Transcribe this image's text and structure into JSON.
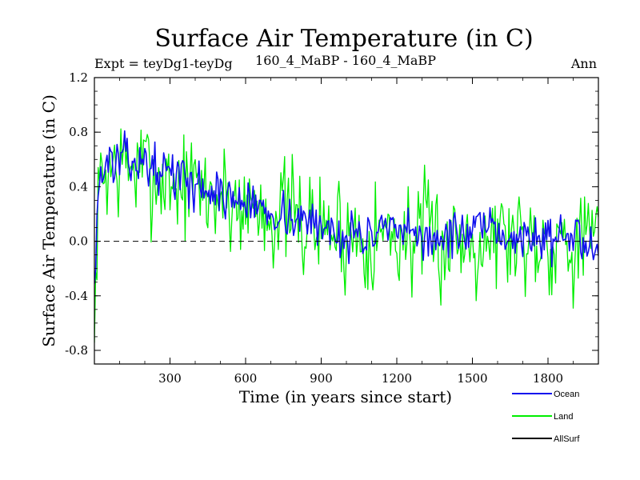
{
  "chart_data": {
    "type": "line",
    "title": "Surface Air Temperature (in C)",
    "subtitle_left": "Expt = teyDg1-teyDg",
    "subtitle_center": "160_4_MaBP - 160_4_MaBP",
    "subtitle_right": "Ann",
    "xlabel": "Time (in years since start)",
    "ylabel": "Surface Air Temperature (in C)",
    "xlim": [
      0,
      2000
    ],
    "ylim": [
      -0.9,
      1.2
    ],
    "x_ticks": [
      300,
      600,
      900,
      1200,
      1500,
      1800
    ],
    "x_tick_labels": [
      "300",
      "600",
      "900",
      "1200",
      "1500",
      "1800"
    ],
    "y_ticks": [
      -0.8,
      -0.4,
      0.0,
      0.4,
      0.8,
      1.2
    ],
    "y_tick_labels": [
      "-0.8",
      "-0.4",
      "0.0",
      "0.4",
      "0.8",
      "1.2"
    ],
    "reference_line": 0.0,
    "series": [
      {
        "name": "Land",
        "color": "#00ee00",
        "step": 5,
        "trend": [
          [
            0,
            -0.85
          ],
          [
            10,
            0.1
          ],
          [
            25,
            0.45
          ],
          [
            60,
            0.55
          ],
          [
            150,
            0.55
          ],
          [
            300,
            0.45
          ],
          [
            450,
            0.35
          ],
          [
            600,
            0.27
          ],
          [
            750,
            0.2
          ],
          [
            900,
            0.1
          ],
          [
            1000,
            0.06
          ],
          [
            1200,
            0.05
          ],
          [
            1400,
            0.0
          ],
          [
            1500,
            0.05
          ],
          [
            1600,
            0.05
          ],
          [
            1800,
            0.02
          ],
          [
            2000,
            0.0
          ]
        ],
        "noise": 0.2,
        "seed": 7
      },
      {
        "name": "Ocean",
        "color": "#1010ee",
        "step": 5,
        "trend": [
          [
            0,
            -0.3
          ],
          [
            10,
            0.2
          ],
          [
            25,
            0.5
          ],
          [
            60,
            0.58
          ],
          [
            150,
            0.6
          ],
          [
            300,
            0.5
          ],
          [
            450,
            0.38
          ],
          [
            600,
            0.28
          ],
          [
            750,
            0.2
          ],
          [
            900,
            0.1
          ],
          [
            1000,
            0.05
          ],
          [
            1200,
            0.05
          ],
          [
            1400,
            0.02
          ],
          [
            1500,
            0.08
          ],
          [
            1600,
            0.05
          ],
          [
            1800,
            0.02
          ],
          [
            2000,
            0.02
          ]
        ],
        "noise": 0.08,
        "seed": 13
      },
      {
        "name": "AllSurf",
        "color": "#000000",
        "step": 5,
        "trend": [],
        "noise": 0,
        "seed": 1
      }
    ],
    "legend_position": "bottom-right"
  }
}
